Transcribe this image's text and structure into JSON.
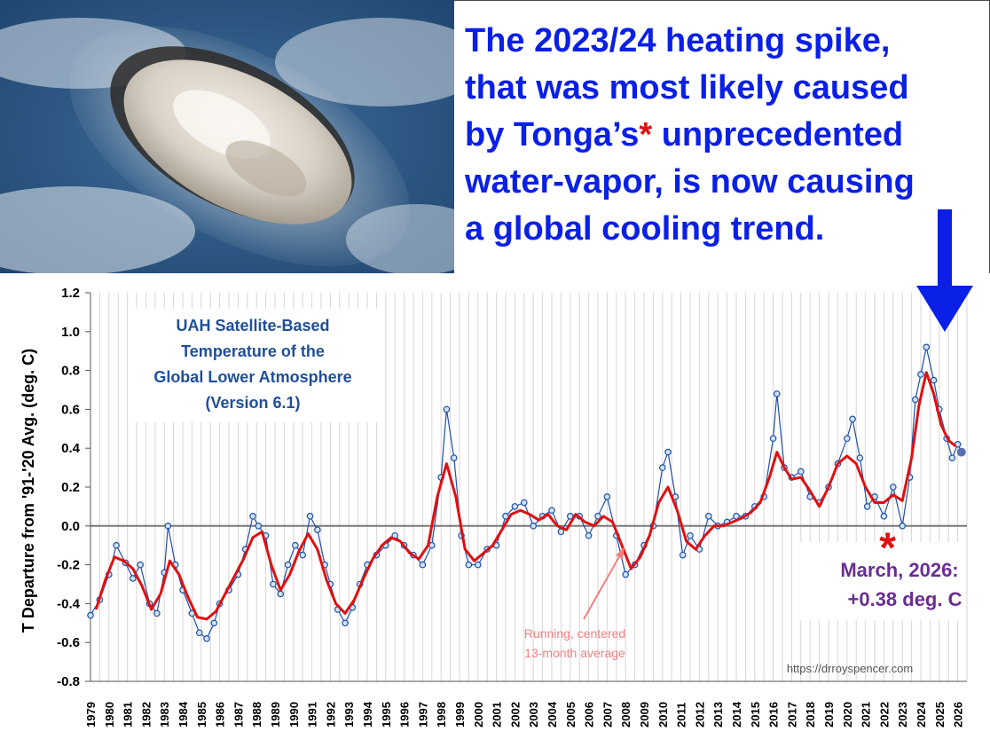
{
  "headline": {
    "line1": "The 2023/24 heating spike,",
    "line2": "that was most likely caused",
    "line3a": "by Tonga’s",
    "line3_asterisk": "*",
    "line3b": " unprecedented",
    "line4": "water-vapor, is now causing",
    "line5": "a global cooling trend."
  },
  "photo": {
    "subject": "volcanic eruption plume from space"
  },
  "colors": {
    "headline": "#0a20e6",
    "monthly_line": "#1f4fa8",
    "monthly_marker_fill": "#cfe3f5",
    "running_avg": "#e01010",
    "annotation_purple": "#6a2d91",
    "annotation_pink": "#f08080",
    "arrow": "#0a20e6"
  },
  "chart_data": {
    "type": "line",
    "title_lines": [
      "UAH Satellite-Based",
      "Temperature of the",
      "Global Lower Atmosphere",
      "(Version 6.1)"
    ],
    "ylabel": "T Departure from '91-'20 Avg. (deg. C)",
    "xlabel": "",
    "ylim": [
      -0.8,
      1.2
    ],
    "yticks": [
      "1.2",
      "1.0",
      "0.8",
      "0.6",
      "0.4",
      "0.2",
      "0.0",
      "-0.2",
      "-0.4",
      "-0.6",
      "-0.8"
    ],
    "xlim": [
      1979,
      2026.5
    ],
    "xticks": [
      "1979",
      "1980",
      "1981",
      "1982",
      "1983",
      "1984",
      "1985",
      "1986",
      "1987",
      "1988",
      "1989",
      "1990",
      "1991",
      "1992",
      "1993",
      "1994",
      "1995",
      "1996",
      "1997",
      "1998",
      "1999",
      "2000",
      "2001",
      "2002",
      "2003",
      "2004",
      "2005",
      "2006",
      "2007",
      "2008",
      "2009",
      "2010",
      "2011",
      "2012",
      "2013",
      "2014",
      "2015",
      "2016",
      "2017",
      "2018",
      "2019",
      "2020",
      "2021",
      "2022",
      "2023",
      "2024",
      "2025",
      "2026"
    ],
    "grid": true,
    "series": [
      {
        "key": "monthly",
        "points": [
          [
            1979.0,
            -0.46
          ],
          [
            1979.5,
            -0.38
          ],
          [
            1980.0,
            -0.25
          ],
          [
            1980.4,
            -0.1
          ],
          [
            1980.9,
            -0.19
          ],
          [
            1981.3,
            -0.27
          ],
          [
            1981.7,
            -0.2
          ],
          [
            1982.2,
            -0.4
          ],
          [
            1982.6,
            -0.45
          ],
          [
            1983.0,
            -0.24
          ],
          [
            1983.2,
            0.0
          ],
          [
            1983.6,
            -0.2
          ],
          [
            1984.0,
            -0.33
          ],
          [
            1984.5,
            -0.45
          ],
          [
            1984.9,
            -0.55
          ],
          [
            1985.3,
            -0.58
          ],
          [
            1985.7,
            -0.5
          ],
          [
            1986.0,
            -0.4
          ],
          [
            1986.5,
            -0.33
          ],
          [
            1987.0,
            -0.25
          ],
          [
            1987.4,
            -0.12
          ],
          [
            1987.8,
            0.05
          ],
          [
            1988.1,
            0.0
          ],
          [
            1988.5,
            -0.05
          ],
          [
            1988.9,
            -0.3
          ],
          [
            1989.3,
            -0.35
          ],
          [
            1989.7,
            -0.2
          ],
          [
            1990.1,
            -0.1
          ],
          [
            1990.5,
            -0.15
          ],
          [
            1990.9,
            0.05
          ],
          [
            1991.3,
            -0.02
          ],
          [
            1991.7,
            -0.2
          ],
          [
            1992.0,
            -0.3
          ],
          [
            1992.4,
            -0.43
          ],
          [
            1992.8,
            -0.5
          ],
          [
            1993.2,
            -0.42
          ],
          [
            1993.6,
            -0.3
          ],
          [
            1994.0,
            -0.2
          ],
          [
            1994.5,
            -0.15
          ],
          [
            1995.0,
            -0.1
          ],
          [
            1995.5,
            -0.05
          ],
          [
            1996.0,
            -0.1
          ],
          [
            1996.5,
            -0.15
          ],
          [
            1997.0,
            -0.2
          ],
          [
            1997.5,
            -0.1
          ],
          [
            1998.0,
            0.25
          ],
          [
            1998.3,
            0.6
          ],
          [
            1998.7,
            0.35
          ],
          [
            1999.1,
            -0.05
          ],
          [
            1999.5,
            -0.2
          ],
          [
            2000.0,
            -0.2
          ],
          [
            2000.5,
            -0.12
          ],
          [
            2001.0,
            -0.1
          ],
          [
            2001.5,
            0.05
          ],
          [
            2002.0,
            0.1
          ],
          [
            2002.5,
            0.12
          ],
          [
            2003.0,
            0.0
          ],
          [
            2003.5,
            0.05
          ],
          [
            2004.0,
            0.08
          ],
          [
            2004.5,
            -0.03
          ],
          [
            2005.0,
            0.05
          ],
          [
            2005.5,
            0.05
          ],
          [
            2006.0,
            -0.05
          ],
          [
            2006.5,
            0.05
          ],
          [
            2007.0,
            0.15
          ],
          [
            2007.5,
            -0.05
          ],
          [
            2008.0,
            -0.25
          ],
          [
            2008.5,
            -0.2
          ],
          [
            2009.0,
            -0.1
          ],
          [
            2009.5,
            0.0
          ],
          [
            2010.0,
            0.3
          ],
          [
            2010.3,
            0.38
          ],
          [
            2010.7,
            0.15
          ],
          [
            2011.1,
            -0.15
          ],
          [
            2011.5,
            -0.05
          ],
          [
            2012.0,
            -0.12
          ],
          [
            2012.5,
            0.05
          ],
          [
            2013.0,
            0.0
          ],
          [
            2013.5,
            0.02
          ],
          [
            2014.0,
            0.05
          ],
          [
            2014.5,
            0.05
          ],
          [
            2015.0,
            0.1
          ],
          [
            2015.5,
            0.15
          ],
          [
            2016.0,
            0.45
          ],
          [
            2016.2,
            0.68
          ],
          [
            2016.6,
            0.3
          ],
          [
            2017.0,
            0.25
          ],
          [
            2017.5,
            0.28
          ],
          [
            2018.0,
            0.15
          ],
          [
            2018.5,
            0.12
          ],
          [
            2019.0,
            0.2
          ],
          [
            2019.5,
            0.32
          ],
          [
            2020.0,
            0.45
          ],
          [
            2020.3,
            0.55
          ],
          [
            2020.7,
            0.35
          ],
          [
            2021.1,
            0.1
          ],
          [
            2021.5,
            0.15
          ],
          [
            2022.0,
            0.05
          ],
          [
            2022.5,
            0.2
          ],
          [
            2023.0,
            0.0
          ],
          [
            2023.4,
            0.25
          ],
          [
            2023.7,
            0.65
          ],
          [
            2024.0,
            0.78
          ],
          [
            2024.3,
            0.92
          ],
          [
            2024.7,
            0.75
          ],
          [
            2025.0,
            0.6
          ],
          [
            2025.4,
            0.45
          ],
          [
            2025.7,
            0.35
          ],
          [
            2026.0,
            0.42
          ],
          [
            2026.2,
            0.38
          ]
        ]
      },
      {
        "name": "Running, centered 13-month average",
        "key": "running_avg",
        "points": [
          [
            1979.3,
            -0.43
          ],
          [
            1979.8,
            -0.28
          ],
          [
            1980.3,
            -0.16
          ],
          [
            1980.8,
            -0.18
          ],
          [
            1981.3,
            -0.22
          ],
          [
            1981.8,
            -0.31
          ],
          [
            1982.3,
            -0.43
          ],
          [
            1982.8,
            -0.35
          ],
          [
            1983.3,
            -0.18
          ],
          [
            1983.8,
            -0.25
          ],
          [
            1984.3,
            -0.37
          ],
          [
            1984.8,
            -0.47
          ],
          [
            1985.3,
            -0.48
          ],
          [
            1985.8,
            -0.44
          ],
          [
            1986.3,
            -0.35
          ],
          [
            1986.8,
            -0.26
          ],
          [
            1987.3,
            -0.17
          ],
          [
            1987.8,
            -0.06
          ],
          [
            1988.3,
            -0.03
          ],
          [
            1988.8,
            -0.2
          ],
          [
            1989.3,
            -0.33
          ],
          [
            1989.8,
            -0.25
          ],
          [
            1990.3,
            -0.13
          ],
          [
            1990.8,
            -0.04
          ],
          [
            1991.3,
            -0.12
          ],
          [
            1991.8,
            -0.28
          ],
          [
            1992.3,
            -0.4
          ],
          [
            1992.8,
            -0.45
          ],
          [
            1993.3,
            -0.38
          ],
          [
            1993.8,
            -0.27
          ],
          [
            1994.3,
            -0.17
          ],
          [
            1994.8,
            -0.1
          ],
          [
            1995.3,
            -0.06
          ],
          [
            1995.8,
            -0.08
          ],
          [
            1996.3,
            -0.14
          ],
          [
            1996.8,
            -0.17
          ],
          [
            1997.3,
            -0.1
          ],
          [
            1997.8,
            0.15
          ],
          [
            1998.3,
            0.32
          ],
          [
            1998.8,
            0.15
          ],
          [
            1999.3,
            -0.12
          ],
          [
            1999.8,
            -0.18
          ],
          [
            2000.3,
            -0.14
          ],
          [
            2000.8,
            -0.1
          ],
          [
            2001.3,
            -0.02
          ],
          [
            2001.8,
            0.06
          ],
          [
            2002.3,
            0.08
          ],
          [
            2002.8,
            0.06
          ],
          [
            2003.3,
            0.03
          ],
          [
            2003.8,
            0.06
          ],
          [
            2004.3,
            0.0
          ],
          [
            2004.8,
            -0.02
          ],
          [
            2005.3,
            0.06
          ],
          [
            2005.8,
            0.02
          ],
          [
            2006.3,
            0.0
          ],
          [
            2006.8,
            0.05
          ],
          [
            2007.3,
            0.02
          ],
          [
            2007.8,
            -0.1
          ],
          [
            2008.3,
            -0.22
          ],
          [
            2008.8,
            -0.16
          ],
          [
            2009.3,
            -0.05
          ],
          [
            2009.8,
            0.12
          ],
          [
            2010.3,
            0.2
          ],
          [
            2010.8,
            0.08
          ],
          [
            2011.3,
            -0.08
          ],
          [
            2011.8,
            -0.12
          ],
          [
            2012.3,
            -0.05
          ],
          [
            2012.8,
            0.0
          ],
          [
            2013.3,
            0.0
          ],
          [
            2013.8,
            0.02
          ],
          [
            2014.3,
            0.04
          ],
          [
            2014.8,
            0.07
          ],
          [
            2015.3,
            0.12
          ],
          [
            2015.8,
            0.25
          ],
          [
            2016.2,
            0.38
          ],
          [
            2016.6,
            0.3
          ],
          [
            2017.0,
            0.24
          ],
          [
            2017.5,
            0.25
          ],
          [
            2018.0,
            0.18
          ],
          [
            2018.5,
            0.1
          ],
          [
            2019.0,
            0.2
          ],
          [
            2019.5,
            0.32
          ],
          [
            2020.0,
            0.36
          ],
          [
            2020.5,
            0.32
          ],
          [
            2021.0,
            0.2
          ],
          [
            2021.5,
            0.12
          ],
          [
            2022.0,
            0.12
          ],
          [
            2022.5,
            0.16
          ],
          [
            2023.0,
            0.13
          ],
          [
            2023.5,
            0.35
          ],
          [
            2023.9,
            0.62
          ],
          [
            2024.3,
            0.79
          ],
          [
            2024.7,
            0.68
          ],
          [
            2025.1,
            0.52
          ],
          [
            2025.5,
            0.44
          ],
          [
            2025.9,
            0.41
          ]
        ]
      }
    ],
    "last_point": {
      "x": 2026.2,
      "y": 0.38
    },
    "annotations": {
      "latest_value_line1": "March, 2026:",
      "latest_value_line2": "+0.38 deg. C",
      "running_avg_line1": "Running, centered",
      "running_avg_line2": "13-month average",
      "asterisk": "*",
      "asterisk_position": {
        "x": 2022.2,
        "y": -0.03
      },
      "source": "https://drroyspencer.com"
    }
  }
}
